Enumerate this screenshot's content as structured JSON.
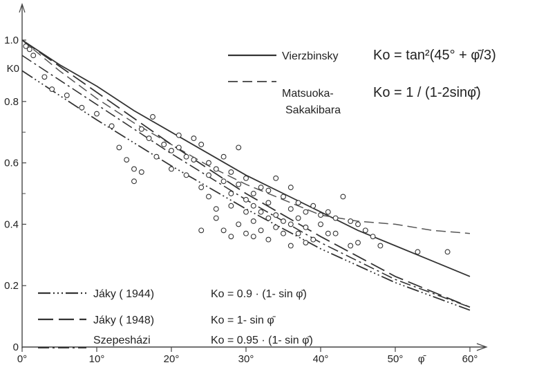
{
  "chart_data": {
    "type": "line",
    "xlabel": "φ̄",
    "ylabel": "K0",
    "xlim": [
      0,
      60
    ],
    "ylim": [
      0,
      1.0
    ],
    "x_ticks": [
      "0°",
      "10°",
      "20°",
      "30°",
      "40°",
      "50°",
      "60°"
    ],
    "y_ticks": [
      "0",
      "0.2",
      "0.4",
      "0.6",
      "0.8",
      "1.0"
    ],
    "series": [
      {
        "name": "Vierzbinsky",
        "formula": "Ko = tan²(45° + φ̄/3)",
        "x": [
          0,
          5,
          10,
          15,
          20,
          25,
          30,
          35,
          40,
          45,
          50,
          55,
          60
        ],
        "y": [
          1.0,
          0.92,
          0.85,
          0.77,
          0.7,
          0.63,
          0.56,
          0.5,
          0.44,
          0.38,
          0.33,
          0.28,
          0.23
        ]
      },
      {
        "name": "Matsuoka-Sakakibara",
        "formula": "Ko = 1 / (1-2sinφ̄)",
        "x": [
          0,
          5,
          10,
          15,
          20,
          25,
          30,
          35,
          40,
          45,
          50,
          55,
          60
        ],
        "y": [
          1.0,
          0.9,
          0.81,
          0.73,
          0.66,
          0.59,
          0.53,
          0.48,
          0.43,
          0.41,
          0.4,
          0.38,
          0.37
        ]
      },
      {
        "name": "Jáky ( 1944)",
        "formula": "Ko = 0.9 · (1- sin φ̄)",
        "x": [
          0,
          10,
          20,
          30,
          40,
          50,
          60
        ],
        "y": [
          0.9,
          0.74,
          0.59,
          0.45,
          0.32,
          0.21,
          0.12
        ]
      },
      {
        "name": "Jáky ( 1948)",
        "formula": "Ko = 1- sin φ̄",
        "x": [
          0,
          10,
          20,
          30,
          40,
          50,
          60
        ],
        "y": [
          1.0,
          0.83,
          0.66,
          0.5,
          0.36,
          0.23,
          0.13
        ]
      },
      {
        "name": "Szepesházi",
        "formula": "Ko = 0.95 · (1- sin φ̄)",
        "x": [
          0,
          10,
          20,
          30,
          40,
          50,
          60
        ],
        "y": [
          0.95,
          0.79,
          0.63,
          0.48,
          0.34,
          0.22,
          0.13
        ]
      }
    ],
    "scatter_points": [
      [
        0.5,
        0.98
      ],
      [
        1,
        0.97
      ],
      [
        1.5,
        0.95
      ],
      [
        3,
        0.88
      ],
      [
        4,
        0.84
      ],
      [
        6,
        0.82
      ],
      [
        8,
        0.78
      ],
      [
        10,
        0.76
      ],
      [
        12,
        0.72
      ],
      [
        13,
        0.65
      ],
      [
        14,
        0.61
      ],
      [
        15,
        0.58
      ],
      [
        16,
        0.71
      ],
      [
        17,
        0.68
      ],
      [
        17.5,
        0.75
      ],
      [
        18,
        0.62
      ],
      [
        19,
        0.66
      ],
      [
        20,
        0.64
      ],
      [
        21,
        0.69
      ],
      [
        21,
        0.65
      ],
      [
        22,
        0.62
      ],
      [
        23,
        0.68
      ],
      [
        23,
        0.61
      ],
      [
        24,
        0.66
      ],
      [
        25,
        0.6
      ],
      [
        25,
        0.56
      ],
      [
        26,
        0.58
      ],
      [
        27,
        0.54
      ],
      [
        27,
        0.62
      ],
      [
        28,
        0.57
      ],
      [
        28,
        0.5
      ],
      [
        29,
        0.53
      ],
      [
        29,
        0.65
      ],
      [
        30,
        0.48
      ],
      [
        30,
        0.55
      ],
      [
        31,
        0.5
      ],
      [
        31,
        0.46
      ],
      [
        32,
        0.52
      ],
      [
        32,
        0.44
      ],
      [
        33,
        0.47
      ],
      [
        33,
        0.51
      ],
      [
        34,
        0.43
      ],
      [
        34,
        0.55
      ],
      [
        35,
        0.49
      ],
      [
        35,
        0.41
      ],
      [
        36,
        0.45
      ],
      [
        36,
        0.52
      ],
      [
        37,
        0.47
      ],
      [
        37,
        0.42
      ],
      [
        38,
        0.44
      ],
      [
        38,
        0.39
      ],
      [
        39,
        0.46
      ],
      [
        40,
        0.43
      ],
      [
        40,
        0.4
      ],
      [
        41,
        0.44
      ],
      [
        42,
        0.37
      ],
      [
        42,
        0.42
      ],
      [
        43,
        0.49
      ],
      [
        44,
        0.41
      ],
      [
        45,
        0.4
      ],
      [
        45,
        0.34
      ],
      [
        46,
        0.38
      ],
      [
        47,
        0.36
      ],
      [
        48,
        0.33
      ],
      [
        24,
        0.38
      ],
      [
        26,
        0.42
      ],
      [
        27,
        0.38
      ],
      [
        28,
        0.36
      ],
      [
        29,
        0.4
      ],
      [
        30,
        0.37
      ],
      [
        31,
        0.36
      ],
      [
        32,
        0.38
      ],
      [
        33,
        0.35
      ],
      [
        35,
        0.37
      ],
      [
        36,
        0.33
      ],
      [
        38,
        0.34
      ],
      [
        41,
        0.37
      ],
      [
        44,
        0.33
      ],
      [
        53,
        0.31
      ],
      [
        57,
        0.31
      ],
      [
        15,
        0.54
      ],
      [
        16,
        0.57
      ],
      [
        20,
        0.58
      ],
      [
        22,
        0.56
      ],
      [
        24,
        0.52
      ],
      [
        25,
        0.49
      ],
      [
        26,
        0.45
      ],
      [
        28,
        0.46
      ],
      [
        30,
        0.44
      ],
      [
        31,
        0.41
      ],
      [
        33,
        0.42
      ],
      [
        34,
        0.39
      ],
      [
        36,
        0.4
      ],
      [
        37,
        0.37
      ],
      [
        39,
        0.35
      ]
    ]
  }
}
